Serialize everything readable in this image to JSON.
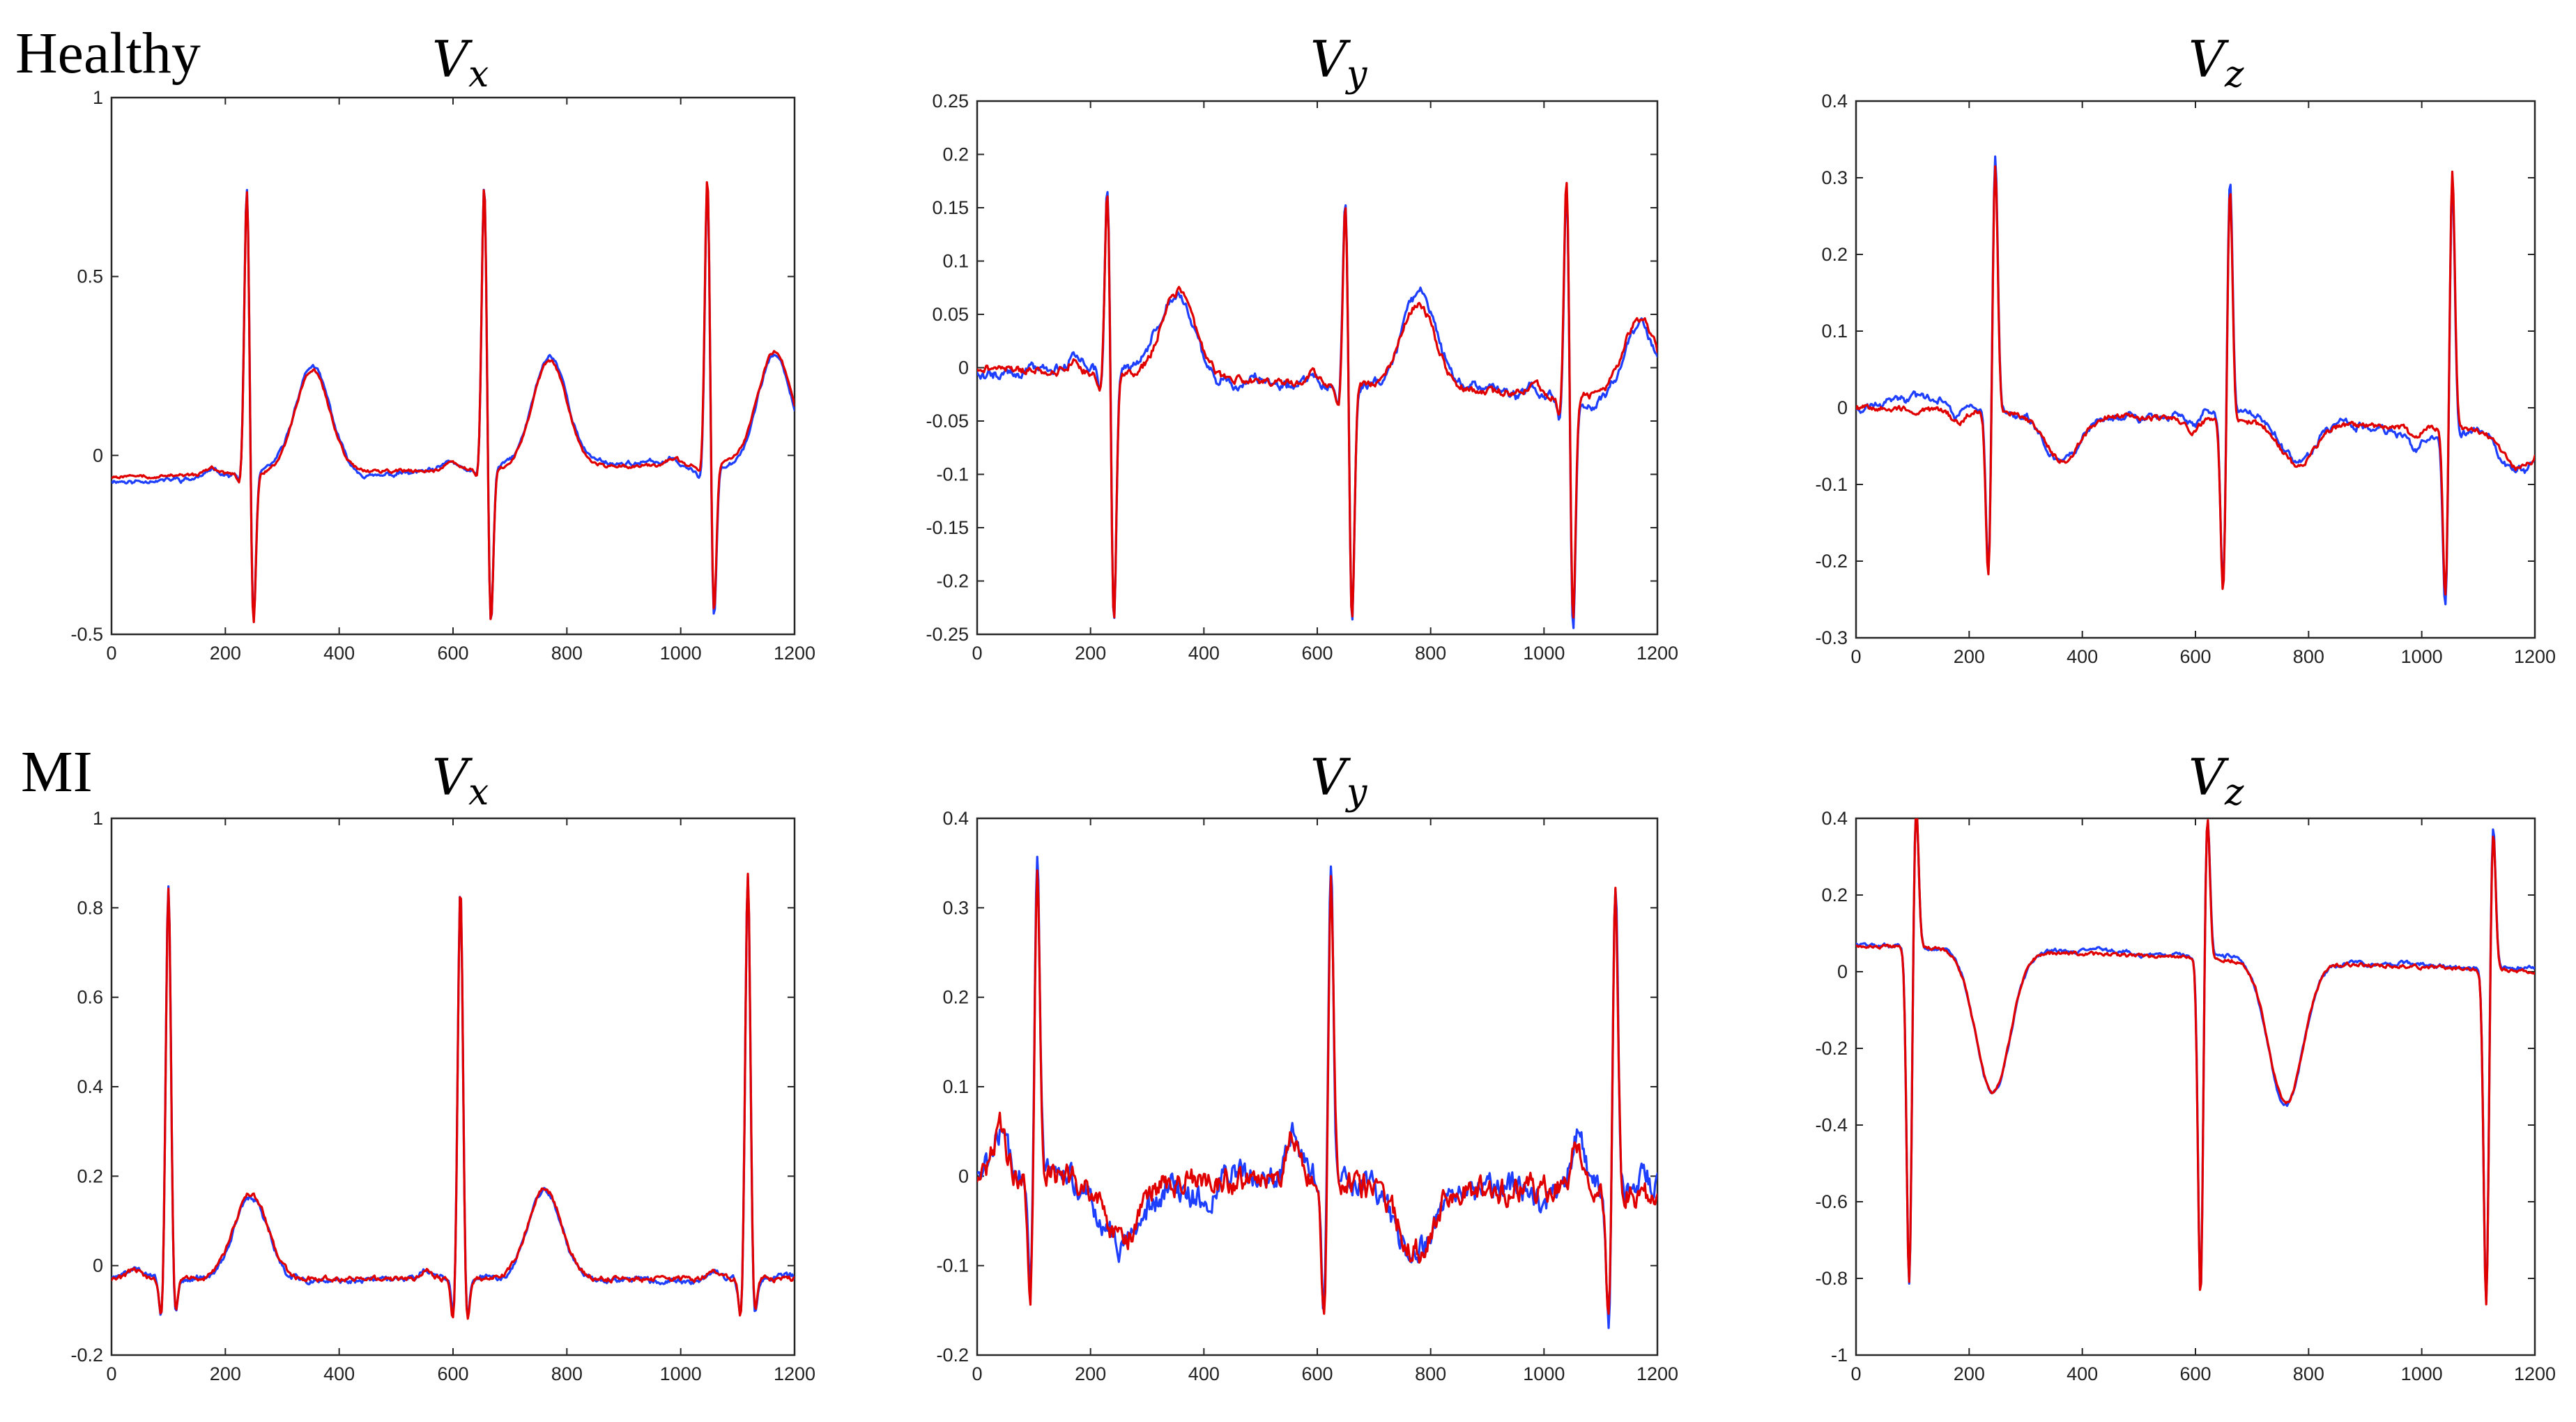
{
  "figure": {
    "row_labels": [
      "Healthy",
      "MI"
    ],
    "trace_colors": {
      "blue": "#1f3fff",
      "red": "#e00000"
    }
  },
  "chart_data": [
    {
      "type": "line",
      "row": "Healthy",
      "title": "V",
      "title_subscript": "x",
      "xlim": [
        0,
        1200
      ],
      "ylim": [
        -0.5,
        1
      ],
      "xticks": [
        0,
        200,
        400,
        600,
        800,
        1000,
        1200
      ],
      "yticks": [
        -0.5,
        0,
        0.5,
        1
      ],
      "ytick_labels": [
        "-0.5",
        "0",
        "0.5",
        "1"
      ],
      "base": {
        "start": -0.06,
        "end": -0.02
      },
      "beats": [
        {
          "t": 238,
          "p": 0.02,
          "q": -0.03,
          "r": 0.81,
          "s": -0.45,
          "st": 0.285,
          "tw": 0.29,
          "tpos": 115
        },
        {
          "t": 655,
          "p": 0.02,
          "q": -0.03,
          "r": 0.81,
          "s": -0.46,
          "st": 0.29,
          "tw": 0.3,
          "tpos": 115
        },
        {
          "t": 1047,
          "p": 0.02,
          "q": -0.03,
          "r": 0.82,
          "s": -0.45,
          "st": 0.285,
          "tw": 0.31,
          "tpos": 118
        }
      ],
      "noise": 0.004,
      "series": [
        {
          "color": "blue",
          "dev": 0.01
        },
        {
          "color": "red",
          "dev": 0
        }
      ]
    },
    {
      "type": "line",
      "row": "Healthy",
      "title": "V",
      "title_subscript": "y",
      "xlim": [
        0,
        1200
      ],
      "ylim": [
        -0.25,
        0.25
      ],
      "xticks": [
        0,
        200,
        400,
        600,
        800,
        1000,
        1200
      ],
      "yticks": [
        -0.25,
        -0.2,
        -0.15,
        -0.1,
        -0.05,
        0,
        0.05,
        0.1,
        0.15,
        0.2,
        0.25
      ],
      "ytick_labels": [
        "-0.25",
        "-0.2",
        "-0.15",
        "-0.1",
        "-0.05",
        "0",
        "0.05",
        "0.1",
        "0.15",
        "0.2",
        "0.25"
      ],
      "base": {
        "start": 0.0,
        "end": -0.03
      },
      "beats": [
        {
          "t": 230,
          "p": 0.01,
          "q": -0.02,
          "r": 0.18,
          "s": -0.24,
          "st": 0.1,
          "tw": 0.08,
          "tpos": 125
        },
        {
          "t": 650,
          "p": 0.01,
          "q": -0.02,
          "r": 0.18,
          "s": -0.23,
          "st": 0.1,
          "tw": 0.08,
          "tpos": 128
        },
        {
          "t": 1040,
          "p": 0.01,
          "q": -0.02,
          "r": 0.21,
          "s": -0.22,
          "st": 0.1,
          "tw": 0.075,
          "tpos": 130
        }
      ],
      "noise": 0.003,
      "series": [
        {
          "color": "blue",
          "dev": 0.006
        },
        {
          "color": "red",
          "dev": 0
        }
      ]
    },
    {
      "type": "line",
      "row": "Healthy",
      "title": "V",
      "title_subscript": "z",
      "xlim": [
        0,
        1200
      ],
      "ylim": [
        -0.3,
        0.4
      ],
      "xticks": [
        0,
        200,
        400,
        600,
        800,
        1000,
        1200
      ],
      "yticks": [
        -0.3,
        -0.2,
        -0.1,
        0,
        0.1,
        0.2,
        0.3,
        0.4
      ],
      "ytick_labels": [
        "-0.3",
        "-0.2",
        "-0.1",
        "0",
        "0.1",
        "0.2",
        "0.3",
        "0.4"
      ],
      "base": {
        "start": 0.0,
        "end": -0.03
      },
      "beats": [
        {
          "t": 240,
          "p": -0.015,
          "q": -0.22,
          "r": 0.33,
          "s": -0.01,
          "st": 0.2,
          "tw": -0.06,
          "tpos": 125
        },
        {
          "t": 655,
          "p": -0.015,
          "q": -0.23,
          "r": 0.31,
          "s": -0.01,
          "st": 0.2,
          "tw": -0.055,
          "tpos": 125
        },
        {
          "t": 1048,
          "p": -0.015,
          "q": -0.23,
          "r": 0.34,
          "s": -0.01,
          "st": 0.2,
          "tw": -0.05,
          "tpos": 125
        }
      ],
      "qrs_order": "qr",
      "noise": 0.003,
      "series": [
        {
          "color": "blue",
          "dev": 0.008
        },
        {
          "color": "red",
          "dev": 0
        }
      ]
    },
    {
      "type": "line",
      "row": "MI",
      "title": "V",
      "title_subscript": "x",
      "xlim": [
        0,
        1200
      ],
      "ylim": [
        -0.2,
        1
      ],
      "xticks": [
        0,
        200,
        400,
        600,
        800,
        1000,
        1200
      ],
      "yticks": [
        -0.2,
        0,
        0.2,
        0.4,
        0.6,
        0.8,
        1
      ],
      "ytick_labels": [
        "-0.2",
        "0",
        "0.2",
        "0.4",
        "0.6",
        "0.8",
        "1"
      ],
      "base": {
        "start": -0.03,
        "end": -0.03
      },
      "beats": [
        {
          "t": 100,
          "p": 0.02,
          "q": -0.1,
          "r": 0.88,
          "s": -0.09,
          "st": 0.0,
          "tw": 0.19,
          "tpos": 145
        },
        {
          "t": 613,
          "p": 0.02,
          "q": -0.1,
          "r": 0.88,
          "s": -0.11,
          "st": 0.0,
          "tw": 0.2,
          "tpos": 148
        },
        {
          "t": 1118,
          "p": 0.02,
          "q": -0.1,
          "r": 0.91,
          "s": -0.09,
          "st": 0.0,
          "tw": 0.0,
          "tpos": 148
        }
      ],
      "noise": 0.005,
      "series": [
        {
          "color": "blue",
          "dev": 0.005
        },
        {
          "color": "red",
          "dev": 0
        }
      ]
    },
    {
      "type": "line",
      "row": "MI",
      "title": "V",
      "title_subscript": "y",
      "xlim": [
        0,
        1200
      ],
      "ylim": [
        -0.2,
        0.4
      ],
      "xticks": [
        0,
        200,
        400,
        600,
        800,
        1000,
        1200
      ],
      "yticks": [
        -0.2,
        -0.1,
        0,
        0.1,
        0.2,
        0.3,
        0.4
      ],
      "ytick_labels": [
        "-0.2",
        "-0.1",
        "0",
        "0.1",
        "0.2",
        "0.3",
        "0.4"
      ],
      "base": {
        "start": 0.0,
        "end": -0.02
      },
      "beats": [
        {
          "t": 100,
          "p": 0.055,
          "q": -0.14,
          "r": 0.35,
          "s": -0.02,
          "st": 0.0,
          "tw": -0.07,
          "tpos": 155
        },
        {
          "t": 618,
          "p": 0.055,
          "q": -0.16,
          "r": 0.35,
          "s": -0.02,
          "st": 0.0,
          "tw": -0.07,
          "tpos": 155
        },
        {
          "t": 1120,
          "p": 0.055,
          "q": -0.16,
          "r": 0.33,
          "s": -0.02,
          "st": 0.0,
          "tw": 0.0,
          "tpos": 155
        }
      ],
      "qrs_order": "qr",
      "noise": 0.012,
      "series": [
        {
          "color": "blue",
          "dev": 0.008
        },
        {
          "color": "red",
          "dev": 0
        }
      ]
    },
    {
      "type": "line",
      "row": "MI",
      "title": "V",
      "title_subscript": "z",
      "xlim": [
        0,
        1200
      ],
      "ylim": [
        -1,
        0.4
      ],
      "xticks": [
        0,
        200,
        400,
        600,
        800,
        1000,
        1200
      ],
      "yticks": [
        -1,
        -0.8,
        -0.6,
        -0.4,
        -0.2,
        0,
        0.2,
        0.4
      ],
      "ytick_labels": [
        "-1",
        "-0.8",
        "-0.6",
        "-0.4",
        "-0.2",
        "0",
        "0.2",
        "0.4"
      ],
      "base": {
        "start": 0.07,
        "end": 0.0
      },
      "beats": [
        {
          "t": 100,
          "p": 0.0,
          "q": -0.89,
          "r": 0.38,
          "s": 0.0,
          "st": 0.12,
          "tw": -0.37,
          "tpos": 142
        },
        {
          "t": 615,
          "p": 0.0,
          "q": -0.89,
          "r": 0.38,
          "s": 0.0,
          "st": 0.12,
          "tw": -0.37,
          "tpos": 145
        },
        {
          "t": 1120,
          "p": 0.0,
          "q": -0.88,
          "r": 0.38,
          "s": 0.0,
          "st": 0.06,
          "tw": 0.0,
          "tpos": 145
        }
      ],
      "qrs_order": "qr",
      "noise": 0.004,
      "series": [
        {
          "color": "blue",
          "dev": 0.006
        },
        {
          "color": "red",
          "dev": 0
        }
      ]
    }
  ]
}
